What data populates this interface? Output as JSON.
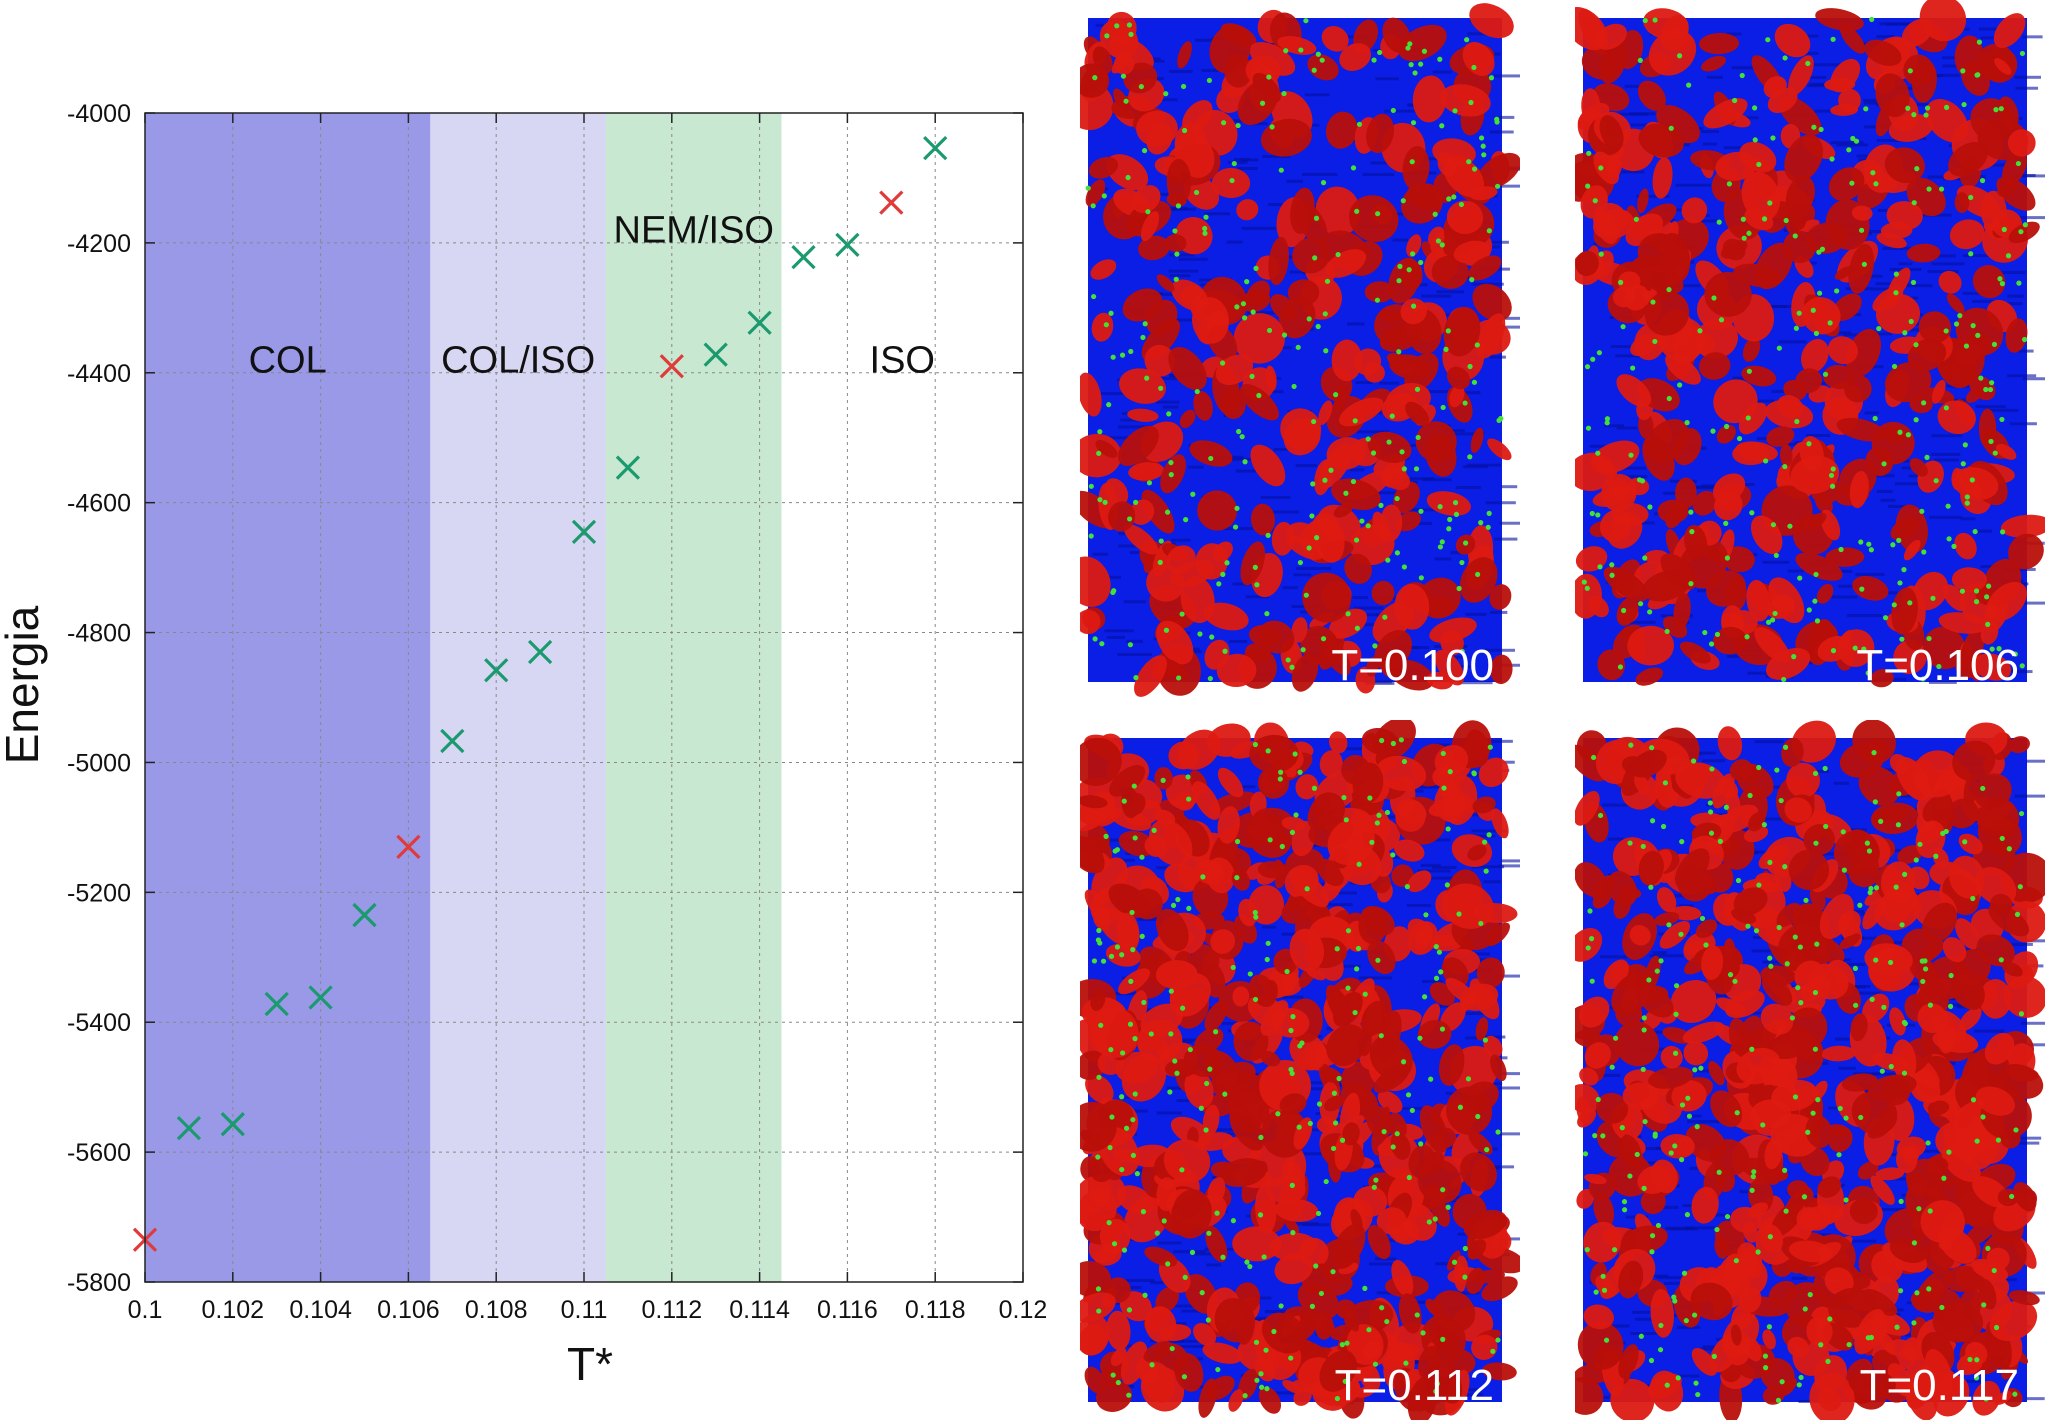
{
  "chart_data": {
    "type": "scatter",
    "xlabel": "T*",
    "ylabel": "Energia",
    "xlim": [
      0.1,
      0.12
    ],
    "ylim": [
      -5800,
      -4000
    ],
    "x_ticks": [
      0.1,
      0.102,
      0.104,
      0.106,
      0.108,
      0.11,
      0.112,
      0.114,
      0.116,
      0.118,
      0.12
    ],
    "x_tick_labels": [
      "0.1",
      "0.102",
      "0.104",
      "0.106",
      "0.108",
      "0.11",
      "0.112",
      "0.114",
      "0.116",
      "0.118",
      "0.12"
    ],
    "y_ticks": [
      -5800,
      -5600,
      -5400,
      -5200,
      -5000,
      -4800,
      -4600,
      -4400,
      -4200,
      -4000
    ],
    "y_tick_labels": [
      "-5800",
      "-5600",
      "-5400",
      "-5200",
      "-5000",
      "-4800",
      "-4600",
      "-4400",
      "-4200",
      "-4000"
    ],
    "grid": true,
    "marker": "x",
    "regions": [
      {
        "label": "COL",
        "x": [
          0.1,
          0.1065
        ],
        "color": "#9999e8",
        "label_y": -4375
      },
      {
        "label": "COL/ISO",
        "x": [
          0.1065,
          0.1105
        ],
        "color": "#d7d7f4",
        "label_y": -4375
      },
      {
        "label": "NEM/ISO",
        "x": [
          0.1105,
          0.1145
        ],
        "color": "#c8e8d1",
        "label_y": -4175
      },
      {
        "label": "ISO",
        "x": [
          0.1145,
          0.12
        ],
        "color": "#ffffff",
        "label_y": -4375
      }
    ],
    "series": [
      {
        "color": "#1a9a6e",
        "x": [
          0.101,
          0.102,
          0.103,
          0.104,
          0.105,
          0.107,
          0.108,
          0.109,
          0.11,
          0.111,
          0.113,
          0.114,
          0.115,
          0.116,
          0.118
        ],
        "y": [
          -5563,
          -5557,
          -5372,
          -5362,
          -5235,
          -4967,
          -4858,
          -4830,
          -4645,
          -4546,
          -4372,
          -4323,
          -4222,
          -4203,
          -4054
        ]
      },
      {
        "color": "#e03a3a",
        "x": [
          0.1,
          0.106,
          0.112,
          0.117
        ],
        "y": [
          -5735,
          -5130,
          -4390,
          -4138
        ]
      }
    ]
  },
  "snapshots": [
    {
      "label": "T=0.100",
      "base_color": "#0a1ee6",
      "overlay_color": "#dd1a12",
      "red_fraction": 0.35,
      "dot_color": "#44e038"
    },
    {
      "label": "T=0.106",
      "base_color": "#0a1ee6",
      "overlay_color": "#dd1a12",
      "red_fraction": 0.5,
      "dot_color": "#44e038"
    },
    {
      "label": "T=0.112",
      "base_color": "#0a1ee6",
      "overlay_color": "#dd1a12",
      "red_fraction": 0.85,
      "dot_color": "#44e038"
    },
    {
      "label": "T=0.117",
      "base_color": "#0a1ee6",
      "overlay_color": "#dd1a12",
      "red_fraction": 0.95,
      "dot_color": "#44e038"
    }
  ]
}
